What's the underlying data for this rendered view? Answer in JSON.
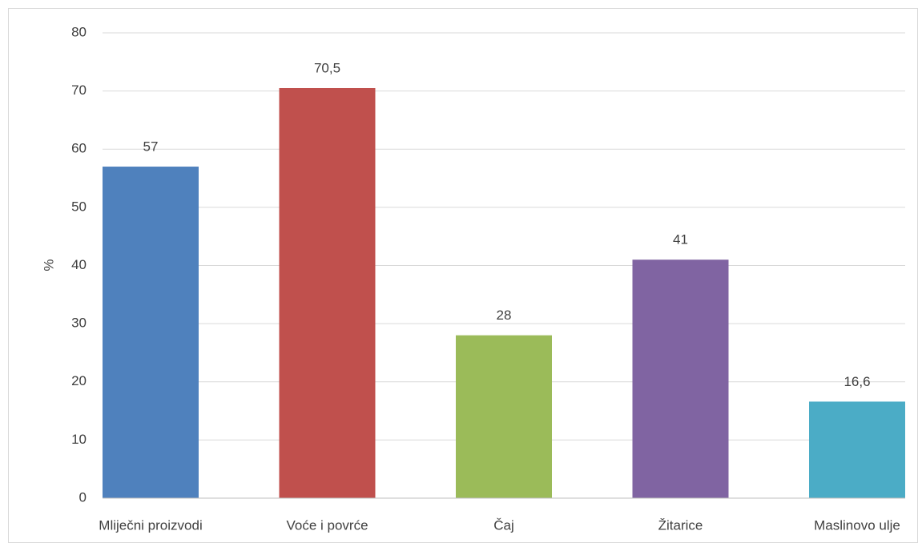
{
  "chart_data": {
    "type": "bar",
    "y_label": "%",
    "categories": [
      "Mliječni proizvodi",
      "Voće i povrće",
      "Čaj",
      "Žitarice",
      "Maslinovo ulje"
    ],
    "values": [
      57,
      70.5,
      28,
      41,
      16.6
    ],
    "value_labels": [
      "57",
      "70,5",
      "28",
      "41",
      "16,6"
    ],
    "colors": [
      "#4f81bd",
      "#c0504d",
      "#9bbb59",
      "#8064a2",
      "#4bacc6"
    ],
    "ylim": [
      0,
      80
    ],
    "yticks": [
      0,
      10,
      20,
      30,
      40,
      50,
      60,
      70,
      80
    ],
    "grid": true
  }
}
